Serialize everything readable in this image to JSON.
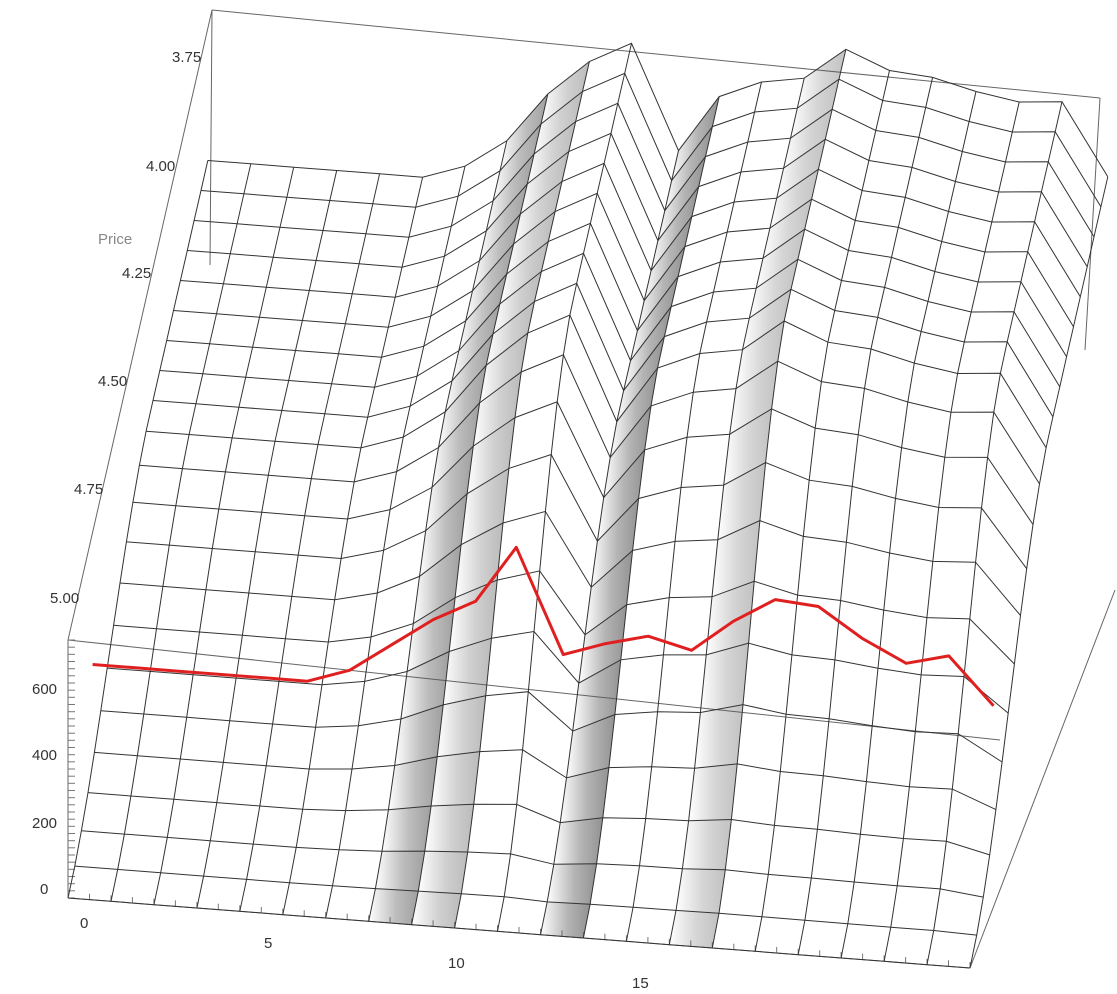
{
  "chart_data": {
    "type": "surface-3d",
    "title": "",
    "xlabel": "",
    "ylabel": "Price",
    "zlabel": "",
    "x_ticks": [
      "0",
      "5",
      "10",
      "15"
    ],
    "price_ticks": [
      "3.75",
      "4.00",
      "4.25",
      "4.50",
      "4.75",
      "5.00"
    ],
    "z_ticks": [
      "0",
      "200",
      "400",
      "600"
    ],
    "x": [
      0,
      1,
      2,
      3,
      4,
      5,
      6,
      7,
      8,
      9,
      10,
      11,
      12,
      13,
      14,
      15,
      16,
      17,
      18,
      19,
      20,
      21
    ],
    "xlim": [
      0,
      21
    ],
    "price_range": [
      3.75,
      5.0
    ],
    "zlim": [
      0,
      720
    ],
    "surface_max": [
      300,
      300,
      300,
      300,
      300,
      300,
      340,
      420,
      560,
      660,
      720,
      430,
      590,
      640,
      660,
      750,
      700,
      690,
      660,
      640,
      650,
      450
    ],
    "peak_price": 4.25,
    "price_samples": 22,
    "highlight_series": {
      "price": 4.75,
      "values": [
        300,
        300,
        300,
        300,
        300,
        300,
        340,
        420,
        500,
        560,
        720,
        430,
        470,
        500,
        470,
        560,
        630,
        620,
        540,
        480,
        510,
        380
      ],
      "color": "#e02020"
    },
    "colors": {
      "grid_line": "#333333",
      "shading": "#555555",
      "highlight": "#e02020"
    },
    "grid": true
  }
}
